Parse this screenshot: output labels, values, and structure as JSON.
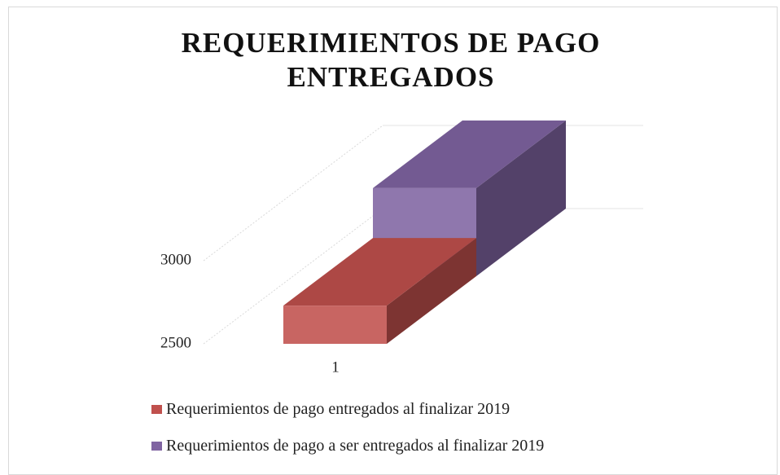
{
  "chart_data": {
    "type": "bar",
    "title": "REQUERIMIENTOS DE PAGO ENTREGADOS",
    "categories": [
      "1"
    ],
    "series": [
      {
        "name": "Requerimientos de pago entregados al finalizar 2019",
        "color": "#c0504d",
        "values": [
          2730
        ]
      },
      {
        "name": "Requerimientos de pago a ser entregados al finalizar 2019",
        "color": "#8064a2",
        "values": [
          3030
        ]
      }
    ],
    "ylim": [
      2500,
      3500
    ],
    "yticks": [
      2500,
      3000
    ],
    "grid": true
  }
}
